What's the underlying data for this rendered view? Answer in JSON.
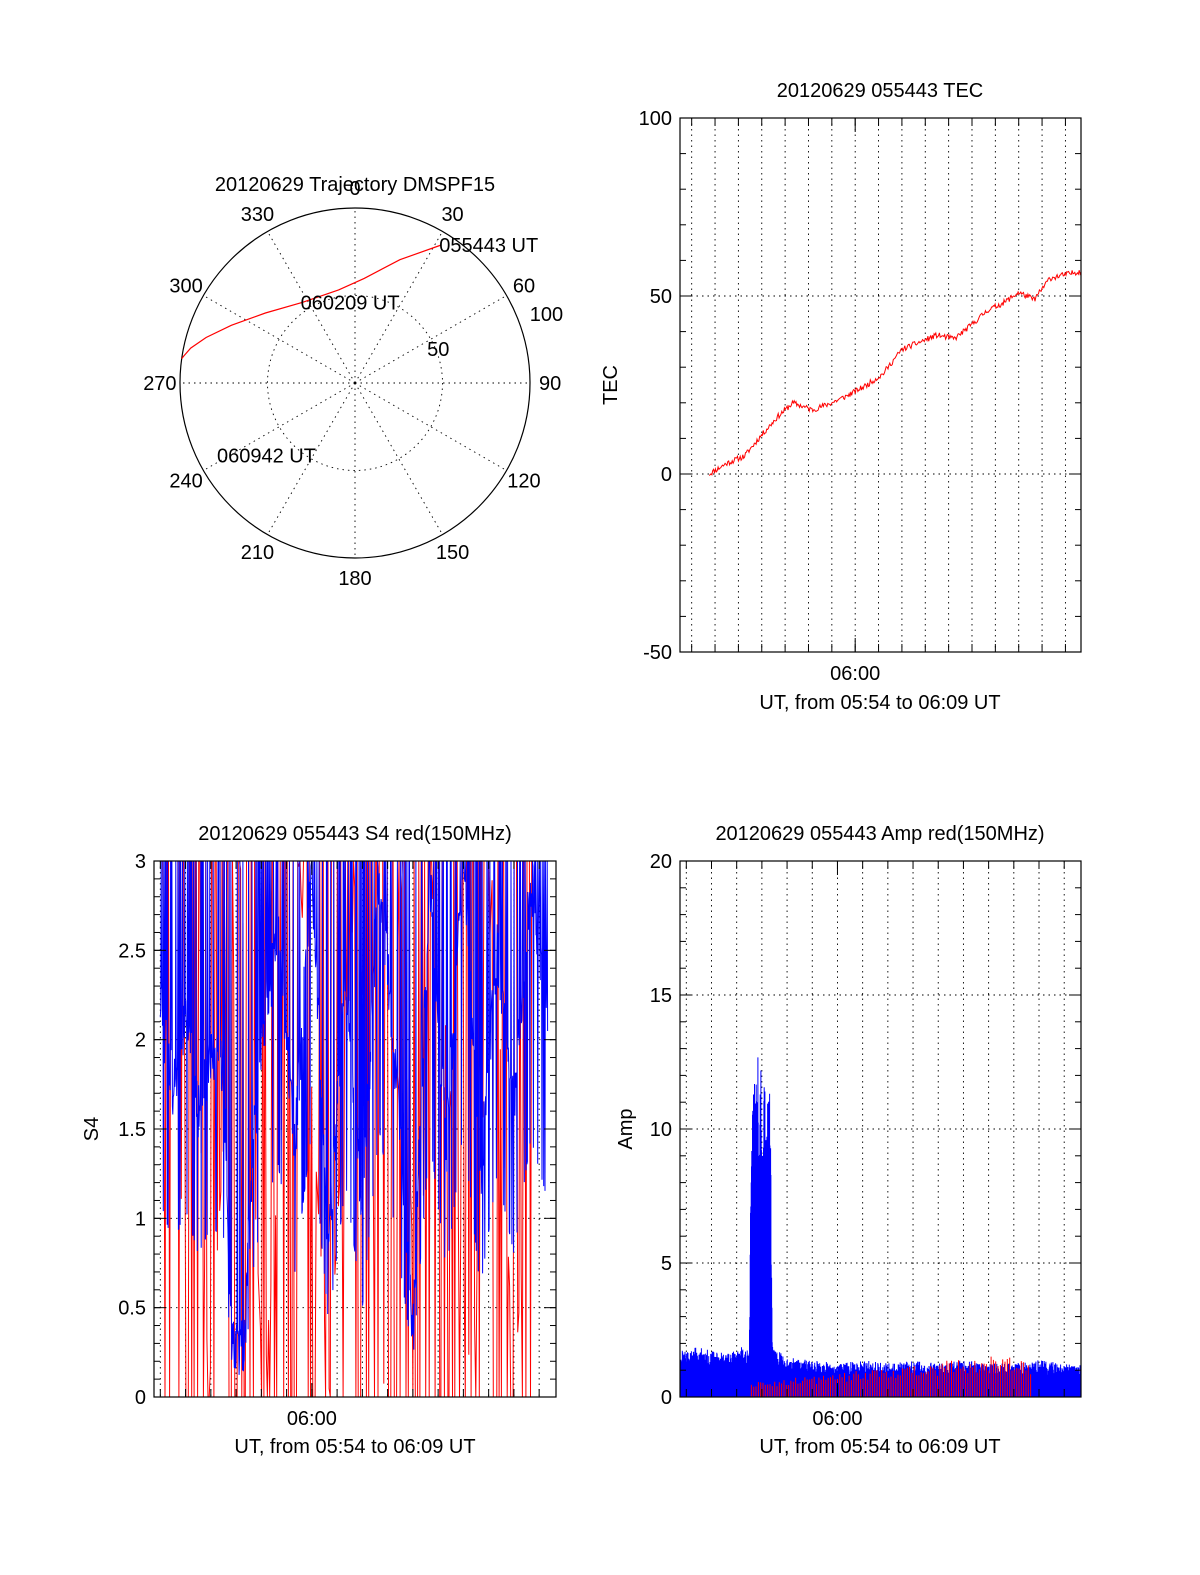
{
  "colors": {
    "red": "#ff0000",
    "blue": "#0000ff",
    "axis": "#000000"
  },
  "chart_data": [
    {
      "type": "polar",
      "title": "20120629 Trajectory DMSPF15",
      "azimuth_labels": [
        "0",
        "30",
        "60",
        "90",
        "120",
        "150",
        "180",
        "210",
        "240",
        "270",
        "300",
        "330"
      ],
      "radius_rings": [
        50,
        100
      ],
      "ring_labels": [
        "50",
        "100"
      ],
      "ring_label_values": [
        50,
        100
      ],
      "rmax": 100,
      "grid": true,
      "series": [
        {
          "color": "#ff0000",
          "points": [
            {
              "az": 32,
              "r": 93
            },
            {
              "az": 20,
              "r": 75
            },
            {
              "az": 5,
              "r": 60
            },
            {
              "az": -10,
              "r": 54
            },
            {
              "az": -33,
              "r": 55
            },
            {
              "az": -52,
              "r": 65
            },
            {
              "az": -65,
              "r": 78
            },
            {
              "az": -73,
              "r": 89
            },
            {
              "az": -78,
              "r": 96
            },
            {
              "az": -81,
              "r": 99
            },
            {
              "az": -82,
              "r": 100
            }
          ]
        }
      ],
      "annotations": [
        {
          "text": "055443 UT",
          "az": 32,
          "r": 93
        },
        {
          "text": "060209 UT",
          "az": -33,
          "r": 55
        },
        {
          "text": "060942 UT",
          "az": -118,
          "r": 88
        }
      ]
    },
    {
      "type": "line",
      "title": "20120629 055443 TEC",
      "xlabel": "UT, from 05:54 to 06:09 UT",
      "ylabel": "TEC",
      "xlim": [
        "05:52:30",
        "06:09:40"
      ],
      "ylim": [
        -50,
        100
      ],
      "yticks": [
        -50,
        0,
        50,
        100
      ],
      "ytick_labels": [
        "-50",
        "0",
        "50",
        "100"
      ],
      "xtick_labels": [
        "06:00"
      ],
      "xtick_values": [
        "06:00:00"
      ],
      "grid": true,
      "series": [
        {
          "color": "#ff0000",
          "x": [
            "05:53:45",
            "05:54:30",
            "05:55:15",
            "05:56:00",
            "05:56:40",
            "05:57:20",
            "05:58:10",
            "05:59:00",
            "05:59:40",
            "06:00:30",
            "06:01:10",
            "06:02:00",
            "06:02:45",
            "06:03:30",
            "06:04:15",
            "06:05:00",
            "06:05:40",
            "06:06:20",
            "06:07:00",
            "06:07:40",
            "06:08:20",
            "06:09:00",
            "06:09:40"
          ],
          "y": [
            0,
            3,
            5,
            11,
            16,
            20,
            18,
            20,
            22,
            25,
            28,
            35,
            37,
            39,
            38,
            42,
            46,
            48,
            51,
            49,
            55,
            56,
            57
          ]
        }
      ]
    },
    {
      "type": "line",
      "title": "20120629 055443 S4 red(150MHz)",
      "xlabel": "UT, from 05:54 to 06:09 UT",
      "ylabel": "S4",
      "xlim": [
        "05:53:45",
        "06:09:40"
      ],
      "ylim": [
        0,
        3
      ],
      "yticks": [
        0,
        0.5,
        1,
        1.5,
        2,
        2.5,
        3
      ],
      "ytick_labels": [
        "0",
        "0.5",
        "1",
        "1.5",
        "2",
        "2.5",
        "3"
      ],
      "xtick_labels": [
        "06:00"
      ],
      "xtick_values": [
        "06:00:00"
      ],
      "grid": true,
      "series": [
        {
          "color": "#ff0000",
          "x": [
            "05:54:00",
            "05:54:35",
            "05:55:15",
            "05:55:55",
            "05:57:10",
            "05:58:05",
            "05:59:30",
            "06:00:40",
            "06:01:45",
            "06:02:50",
            "06:03:30",
            "06:04:10",
            "06:04:50",
            "06:06:20",
            "06:07:10",
            "06:08:00",
            "06:08:45"
          ],
          "y": [
            3,
            0,
            3,
            0,
            3,
            0,
            3,
            0,
            3,
            0,
            3,
            0,
            3,
            0,
            3,
            0,
            1.8
          ]
        },
        {
          "color": "#0000ff",
          "x": [
            "05:54:00",
            "05:54:30",
            "05:55:00",
            "05:55:30",
            "05:56:00",
            "05:56:30",
            "05:56:50",
            "05:57:05",
            "05:57:20",
            "05:57:40",
            "05:58:00",
            "05:58:40",
            "05:59:20",
            "06:00:00",
            "06:00:40",
            "06:01:20",
            "06:02:00",
            "06:02:40",
            "06:03:20",
            "06:04:00",
            "06:04:40",
            "06:05:20",
            "06:06:00",
            "06:06:40",
            "06:07:20",
            "06:08:00",
            "06:08:40",
            "06:09:20"
          ],
          "y": [
            2.2,
            1.7,
            2.1,
            1.6,
            1.9,
            1.8,
            0.35,
            0.3,
            0.28,
            1.4,
            2.0,
            2.6,
            1.4,
            3,
            0.8,
            2.4,
            1.0,
            3,
            1.8,
            0.4,
            2.9,
            1.4,
            3,
            1.2,
            2.5,
            1.6,
            2.9,
            2.2
          ]
        }
      ]
    },
    {
      "type": "line",
      "title": "20120629 055443 Amp red(150MHz)",
      "xlabel": "UT, from 05:54 to 06:09 UT",
      "ylabel": "Amp",
      "xlim": [
        "05:53:45",
        "06:09:40"
      ],
      "ylim": [
        0,
        20
      ],
      "yticks": [
        0,
        5,
        10,
        15,
        20
      ],
      "ytick_labels": [
        "0",
        "5",
        "10",
        "15",
        "20"
      ],
      "xtick_labels": [
        "06:00"
      ],
      "xtick_values": [
        "06:00:00"
      ],
      "grid": true,
      "series": [
        {
          "color": "#0000ff",
          "x": [
            "05:53:45",
            "05:54:30",
            "05:55:30",
            "05:56:30",
            "05:56:35",
            "05:56:50",
            "05:57:10",
            "05:57:20",
            "05:57:25",
            "05:58:00",
            "05:59:00",
            "06:00:00",
            "06:01:00",
            "06:02:00",
            "06:03:00",
            "06:04:00",
            "06:05:00",
            "06:06:00",
            "06:07:00",
            "06:08:00",
            "06:09:00",
            "06:09:40"
          ],
          "y": [
            1.4,
            1.5,
            1.3,
            1.6,
            9.0,
            10.4,
            9.3,
            9.0,
            1.5,
            1.2,
            1.1,
            1.0,
            1.1,
            1.0,
            1.1,
            1.0,
            1.1,
            1.0,
            1.0,
            1.1,
            1.0,
            1.0
          ]
        },
        {
          "color": "#ff0000",
          "x": [
            "05:56:35",
            "05:57:20",
            "06:07:00",
            "06:07:40"
          ],
          "y": [
            0.5,
            0.5,
            1.3,
            1.1
          ]
        }
      ]
    }
  ]
}
